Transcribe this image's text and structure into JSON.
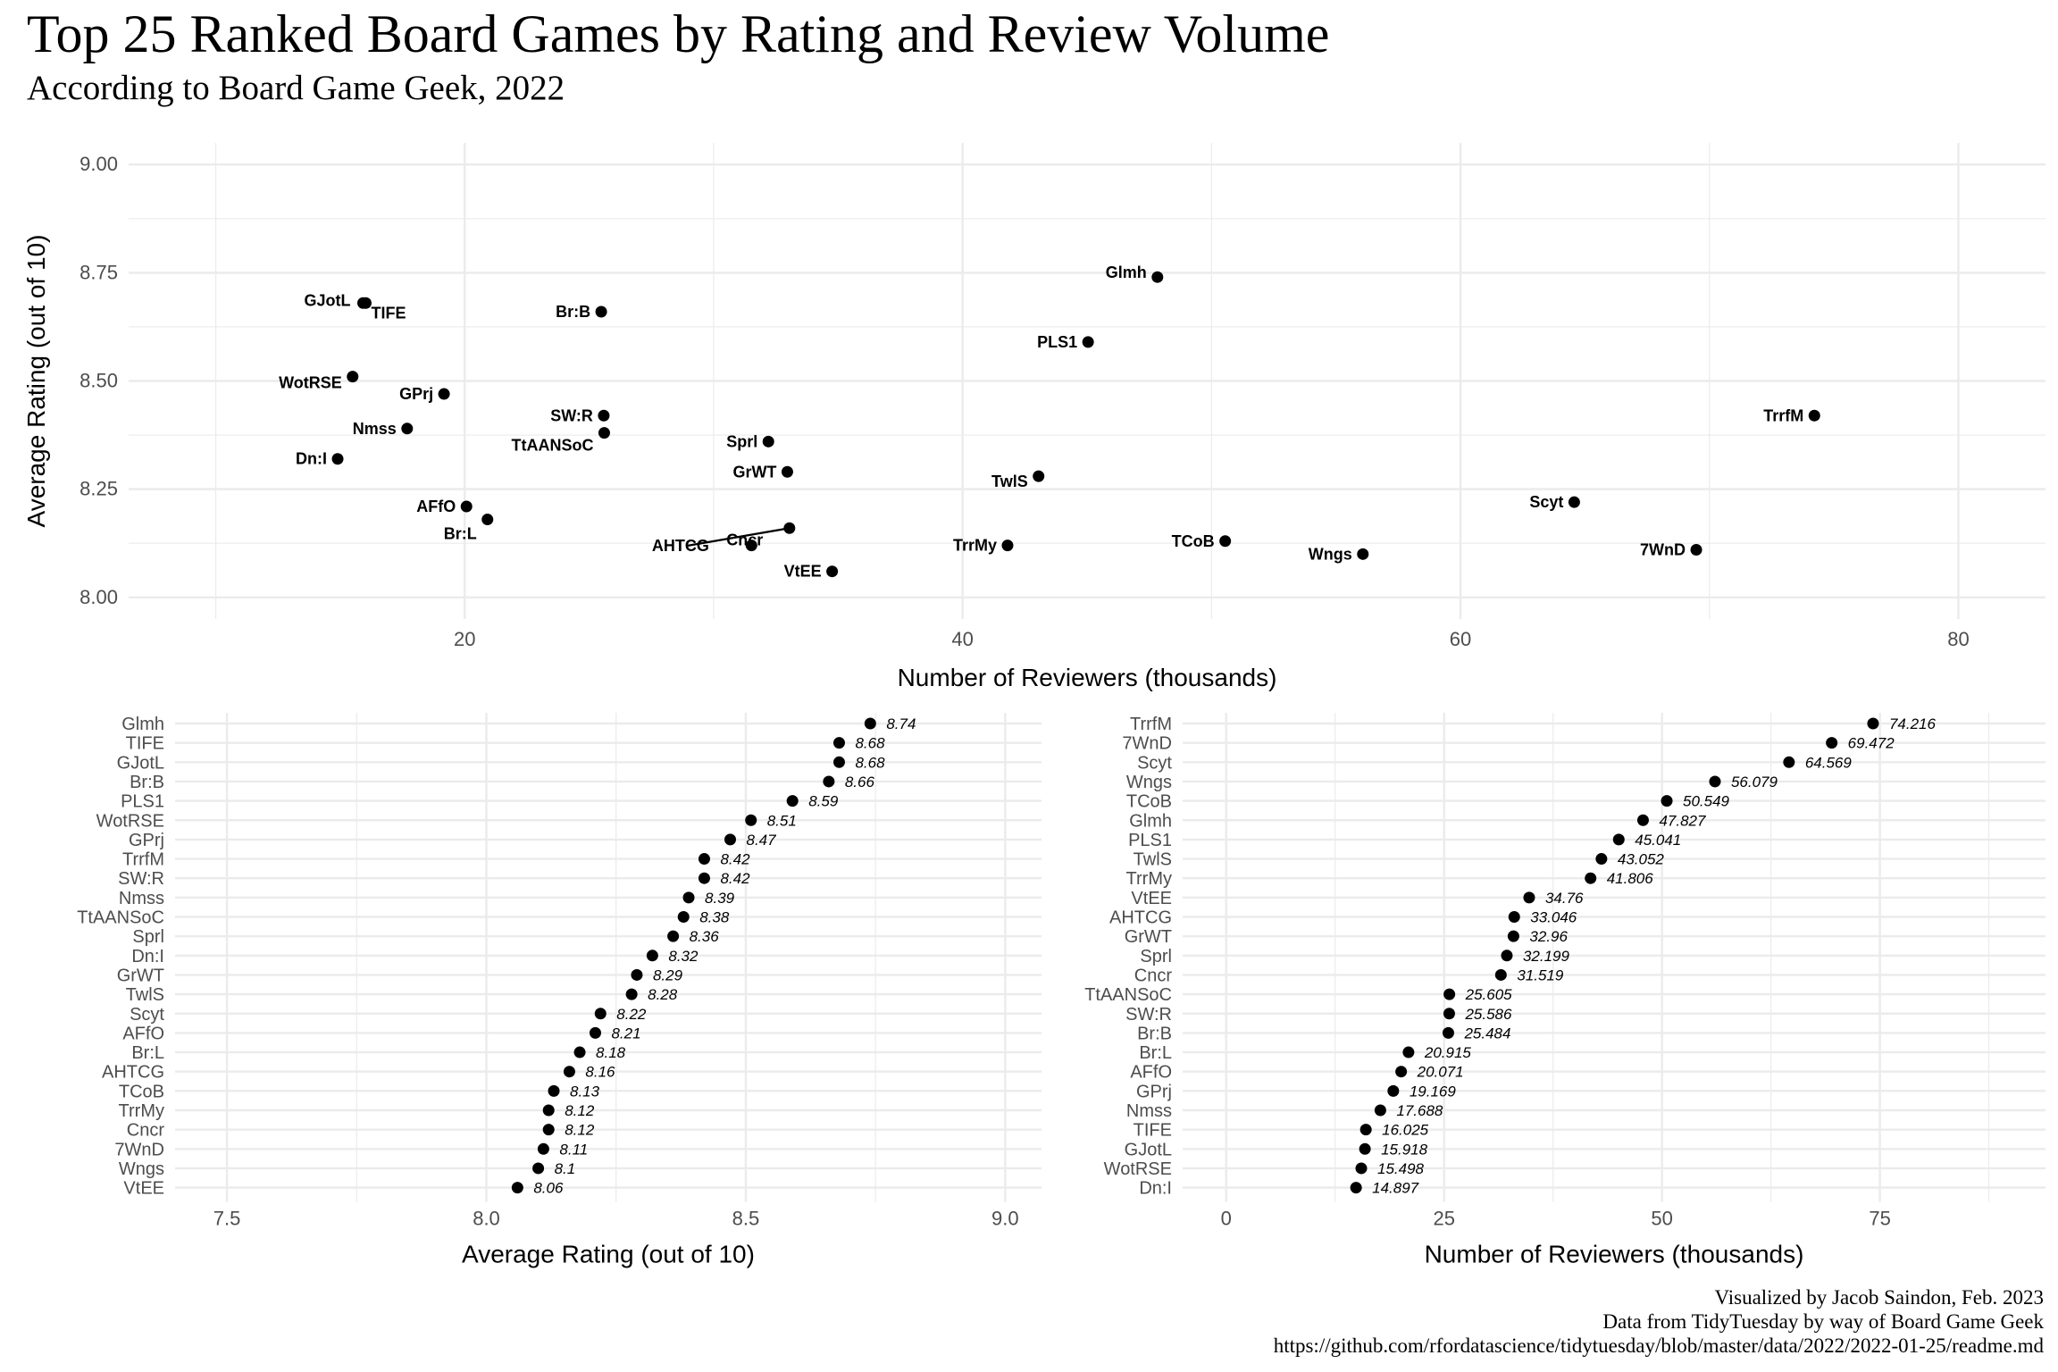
{
  "title": "Top 25 Ranked Board Games by Rating and Review Volume",
  "subtitle": "According to Board Game Geek, 2022",
  "caption": {
    "line1": "Visualized by Jacob Saindon, Feb. 2023",
    "line2": "Data from TidyTuesday by way of Board Game Geek",
    "line3": "https://github.com/rfordatascience/tidytuesday/blob/master/data/2022/2022-01-25/readme.md"
  },
  "chart_data": [
    {
      "type": "scatter",
      "xlabel": "Number of Reviewers (thousands)",
      "ylabel": "Average Rating (out of 10)",
      "xlim": [
        6.5,
        83.5
      ],
      "ylim": [
        7.95,
        9.05
      ],
      "xticks": [
        20,
        40,
        60,
        80
      ],
      "yticks": [
        "8.00",
        "8.25",
        "8.50",
        "8.75",
        "9.00"
      ],
      "grid": true,
      "points": [
        {
          "label": "Glmh",
          "x": 47.827,
          "y": 8.74
        },
        {
          "label": "TIFE",
          "x": 16.025,
          "y": 8.68
        },
        {
          "label": "GJotL",
          "x": 15.918,
          "y": 8.68
        },
        {
          "label": "Br:B",
          "x": 25.484,
          "y": 8.66
        },
        {
          "label": "PLS1",
          "x": 45.041,
          "y": 8.59
        },
        {
          "label": "WotRSE",
          "x": 15.498,
          "y": 8.51
        },
        {
          "label": "GPrj",
          "x": 19.169,
          "y": 8.47
        },
        {
          "label": "TrrfM",
          "x": 74.216,
          "y": 8.42
        },
        {
          "label": "SW:R",
          "x": 25.586,
          "y": 8.42
        },
        {
          "label": "Nmss",
          "x": 17.688,
          "y": 8.39
        },
        {
          "label": "TtAANSoC",
          "x": 25.605,
          "y": 8.38
        },
        {
          "label": "Sprl",
          "x": 32.199,
          "y": 8.36
        },
        {
          "label": "Dn:I",
          "x": 14.897,
          "y": 8.32
        },
        {
          "label": "GrWT",
          "x": 32.96,
          "y": 8.29
        },
        {
          "label": "TwlS",
          "x": 43.052,
          "y": 8.28
        },
        {
          "label": "Scyt",
          "x": 64.569,
          "y": 8.22
        },
        {
          "label": "AFfO",
          "x": 20.071,
          "y": 8.21
        },
        {
          "label": "Br:L",
          "x": 20.915,
          "y": 8.18
        },
        {
          "label": "AHTCG",
          "x": 33.046,
          "y": 8.16
        },
        {
          "label": "TCoB",
          "x": 50.549,
          "y": 8.13
        },
        {
          "label": "TrrMy",
          "x": 41.806,
          "y": 8.12
        },
        {
          "label": "Cncr",
          "x": 31.519,
          "y": 8.12
        },
        {
          "label": "7WnD",
          "x": 69.472,
          "y": 8.11
        },
        {
          "label": "Wngs",
          "x": 56.079,
          "y": 8.1
        },
        {
          "label": "VtEE",
          "x": 34.76,
          "y": 8.06
        }
      ]
    },
    {
      "type": "scatter",
      "xlabel": "Average Rating (out of 10)",
      "ylabel": "",
      "xlim": [
        7.4,
        9.07
      ],
      "xticks": [
        "7.5",
        "8.0",
        "8.5",
        "9.0"
      ],
      "grid": true,
      "categories": [
        "Glmh",
        "TIFE",
        "GJotL",
        "Br:B",
        "PLS1",
        "WotRSE",
        "GPrj",
        "TrrfM",
        "SW:R",
        "Nmss",
        "TtAANSoC",
        "Sprl",
        "Dn:I",
        "GrWT",
        "TwlS",
        "Scyt",
        "AFfO",
        "Br:L",
        "AHTCG",
        "TCoB",
        "TrrMy",
        "Cncr",
        "7WnD",
        "Wngs",
        "VtEE"
      ],
      "values": [
        8.74,
        8.68,
        8.68,
        8.66,
        8.59,
        8.51,
        8.47,
        8.42,
        8.42,
        8.39,
        8.38,
        8.36,
        8.32,
        8.29,
        8.28,
        8.22,
        8.21,
        8.18,
        8.16,
        8.13,
        8.12,
        8.12,
        8.11,
        8.1,
        8.06
      ],
      "value_labels": [
        "8.74",
        "8.68",
        "8.68",
        "8.66",
        "8.59",
        "8.51",
        "8.47",
        "8.42",
        "8.42",
        "8.39",
        "8.38",
        "8.36",
        "8.32",
        "8.29",
        "8.28",
        "8.22",
        "8.21",
        "8.18",
        "8.16",
        "8.13",
        "8.12",
        "8.12",
        "8.11",
        "8.1",
        "8.06"
      ]
    },
    {
      "type": "scatter",
      "xlabel": "Number of Reviewers (thousands)",
      "ylabel": "",
      "xlim": [
        -5,
        94
      ],
      "xticks": [
        "0",
        "25",
        "50",
        "75"
      ],
      "grid": true,
      "categories": [
        "TrrfM",
        "7WnD",
        "Scyt",
        "Wngs",
        "TCoB",
        "Glmh",
        "PLS1",
        "TwlS",
        "TrrMy",
        "VtEE",
        "AHTCG",
        "GrWT",
        "Sprl",
        "Cncr",
        "TtAANSoC",
        "SW:R",
        "Br:B",
        "Br:L",
        "AFfO",
        "GPrj",
        "Nmss",
        "TIFE",
        "GJotL",
        "WotRSE",
        "Dn:I"
      ],
      "values": [
        74.216,
        69.472,
        64.569,
        56.079,
        50.549,
        47.827,
        45.041,
        43.052,
        41.806,
        34.76,
        33.046,
        32.96,
        32.199,
        31.519,
        25.605,
        25.586,
        25.484,
        20.915,
        20.071,
        19.169,
        17.688,
        16.025,
        15.918,
        15.498,
        14.897
      ],
      "value_labels": [
        "74.216",
        "69.472",
        "64.569",
        "56.079",
        "50.549",
        "47.827",
        "45.041",
        "43.052",
        "41.806",
        "34.76",
        "33.046",
        "32.96",
        "32.199",
        "31.519",
        "25.605",
        "25.586",
        "25.484",
        "20.915",
        "20.071",
        "19.169",
        "17.688",
        "16.025",
        "15.918",
        "15.498",
        "14.897"
      ]
    }
  ]
}
